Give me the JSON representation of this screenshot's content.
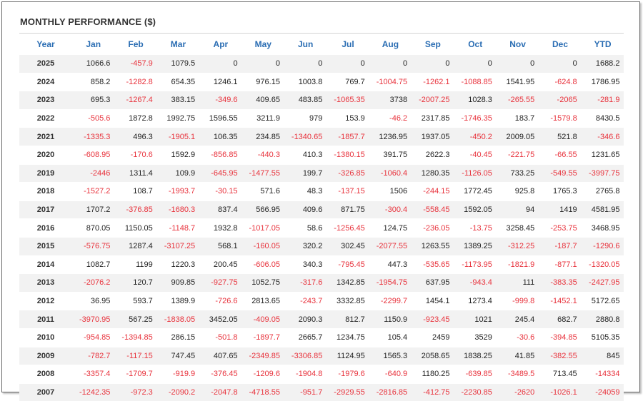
{
  "title": "MONTHLY PERFORMANCE ($)",
  "colors": {
    "header": "#2a6db3",
    "negative": "#e8323c",
    "stripe": "#f2f2f2"
  },
  "columns": [
    "Year",
    "Jan",
    "Feb",
    "Mar",
    "Apr",
    "May",
    "Jun",
    "Jul",
    "Aug",
    "Sep",
    "Oct",
    "Nov",
    "Dec",
    "YTD"
  ],
  "rows": [
    [
      "2025",
      "1066.6",
      "-457.9",
      "1079.5",
      "0",
      "0",
      "0",
      "0",
      "0",
      "0",
      "0",
      "0",
      "0",
      "1688.2"
    ],
    [
      "2024",
      "858.2",
      "-1282.8",
      "654.35",
      "1246.1",
      "976.15",
      "1003.8",
      "769.7",
      "-1004.75",
      "-1262.1",
      "-1088.85",
      "1541.95",
      "-624.8",
      "1786.95"
    ],
    [
      "2023",
      "695.3",
      "-1267.4",
      "383.15",
      "-349.6",
      "409.65",
      "483.85",
      "-1065.35",
      "3738",
      "-2007.25",
      "1028.3",
      "-265.55",
      "-2065",
      "-281.9"
    ],
    [
      "2022",
      "-505.6",
      "1872.8",
      "1992.75",
      "1596.55",
      "3211.9",
      "979",
      "153.9",
      "-46.2",
      "2317.85",
      "-1746.35",
      "183.7",
      "-1579.8",
      "8430.5"
    ],
    [
      "2021",
      "-1335.3",
      "496.3",
      "-1905.1",
      "106.35",
      "234.85",
      "-1340.65",
      "-1857.7",
      "1236.95",
      "1937.05",
      "-450.2",
      "2009.05",
      "521.8",
      "-346.6"
    ],
    [
      "2020",
      "-608.95",
      "-170.6",
      "1592.9",
      "-856.85",
      "-440.3",
      "410.3",
      "-1380.15",
      "391.75",
      "2622.3",
      "-40.45",
      "-221.75",
      "-66.55",
      "1231.65"
    ],
    [
      "2019",
      "-2446",
      "1311.4",
      "109.9",
      "-645.95",
      "-1477.55",
      "199.7",
      "-326.85",
      "-1060.4",
      "1280.35",
      "-1126.05",
      "733.25",
      "-549.55",
      "-3997.75"
    ],
    [
      "2018",
      "-1527.2",
      "108.7",
      "-1993.7",
      "-30.15",
      "571.6",
      "48.3",
      "-137.15",
      "1506",
      "-244.15",
      "1772.45",
      "925.8",
      "1765.3",
      "2765.8"
    ],
    [
      "2017",
      "1707.2",
      "-376.85",
      "-1680.3",
      "837.4",
      "566.95",
      "409.6",
      "871.75",
      "-300.4",
      "-558.45",
      "1592.05",
      "94",
      "1419",
      "4581.95"
    ],
    [
      "2016",
      "870.05",
      "1150.05",
      "-1148.7",
      "1932.8",
      "-1017.05",
      "58.6",
      "-1256.45",
      "124.75",
      "-236.05",
      "-13.75",
      "3258.45",
      "-253.75",
      "3468.95"
    ],
    [
      "2015",
      "-576.75",
      "1287.4",
      "-3107.25",
      "568.1",
      "-160.05",
      "320.2",
      "302.45",
      "-2077.55",
      "1263.55",
      "1389.25",
      "-312.25",
      "-187.7",
      "-1290.6"
    ],
    [
      "2014",
      "1082.7",
      "1199",
      "1220.3",
      "200.45",
      "-606.05",
      "340.3",
      "-795.45",
      "447.3",
      "-535.65",
      "-1173.95",
      "-1821.9",
      "-877.1",
      "-1320.05"
    ],
    [
      "2013",
      "-2076.2",
      "120.7",
      "909.85",
      "-927.75",
      "1052.75",
      "-317.6",
      "1342.85",
      "-1954.75",
      "637.95",
      "-943.4",
      "111",
      "-383.35",
      "-2427.95"
    ],
    [
      "2012",
      "36.95",
      "593.7",
      "1389.9",
      "-726.6",
      "2813.65",
      "-243.7",
      "3332.85",
      "-2299.7",
      "1454.1",
      "1273.4",
      "-999.8",
      "-1452.1",
      "5172.65"
    ],
    [
      "2011",
      "-3970.95",
      "567.25",
      "-1838.05",
      "3452.05",
      "-409.05",
      "2090.3",
      "812.7",
      "1150.9",
      "-923.45",
      "1021",
      "245.4",
      "682.7",
      "2880.8"
    ],
    [
      "2010",
      "-954.85",
      "-1394.85",
      "286.15",
      "-501.8",
      "-1897.7",
      "2665.7",
      "1234.75",
      "105.4",
      "2459",
      "3529",
      "-30.6",
      "-394.85",
      "5105.35"
    ],
    [
      "2009",
      "-782.7",
      "-117.15",
      "747.45",
      "407.65",
      "-2349.85",
      "-3306.85",
      "1124.95",
      "1565.3",
      "2058.65",
      "1838.25",
      "41.85",
      "-382.55",
      "845"
    ],
    [
      "2008",
      "-3357.4",
      "-1709.7",
      "-919.9",
      "-376.45",
      "-1209.6",
      "-1904.8",
      "-1979.6",
      "-640.9",
      "1180.25",
      "-639.85",
      "-3489.5",
      "713.45",
      "-14334"
    ],
    [
      "2007",
      "-1242.35",
      "-972.3",
      "-2090.2",
      "-2047.8",
      "-4718.55",
      "-951.7",
      "-2929.55",
      "-2816.85",
      "-412.75",
      "-2230.85",
      "-2620",
      "-1026.1",
      "-24059"
    ]
  ]
}
